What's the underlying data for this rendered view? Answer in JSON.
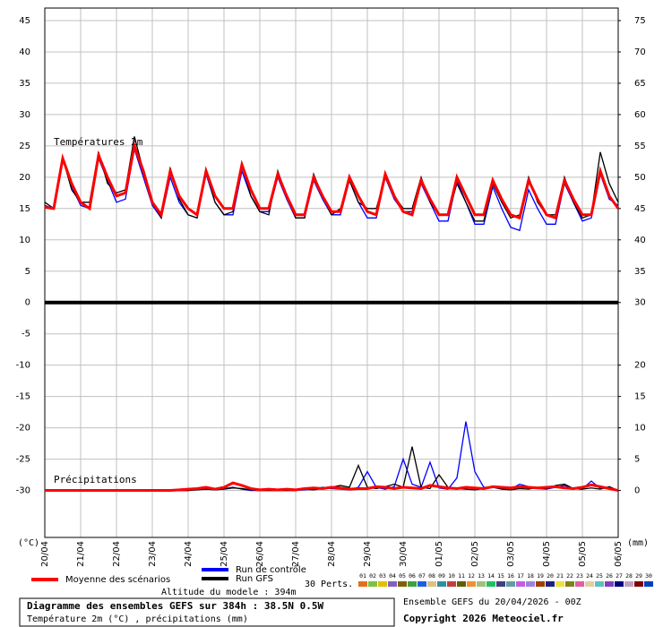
{
  "chart_data": {
    "type": "line",
    "title": "Diagramme des ensembles GEFS sur 384h : 38.5N 0.5W",
    "subtitle": "Température 2m (°C) , précipitations (mm)",
    "run_info": "Ensemble GEFS du 20/04/2026 - 00Z",
    "copyright": "Copyright 2026 Meteociel.fr",
    "altitude": "Altitude du modele : 394m",
    "temp_label": "Températures 2m",
    "precip_label": "Précipitations",
    "y_unit": "(°C)",
    "y2_unit": "(mm)",
    "perts_label": "30 Perts.",
    "xlim": [
      0,
      384
    ],
    "xticks": [
      {
        "value": 0,
        "label": "20/04"
      },
      {
        "value": 24,
        "label": "21/04"
      },
      {
        "value": 48,
        "label": "22/04"
      },
      {
        "value": 72,
        "label": "23/04"
      },
      {
        "value": 96,
        "label": "24/04"
      },
      {
        "value": 120,
        "label": "25/04"
      },
      {
        "value": 144,
        "label": "26/04"
      },
      {
        "value": 168,
        "label": "27/04"
      },
      {
        "value": 192,
        "label": "28/04"
      },
      {
        "value": 216,
        "label": "29/04"
      },
      {
        "value": 240,
        "label": "30/04"
      },
      {
        "value": 264,
        "label": "01/05"
      },
      {
        "value": 288,
        "label": "02/05"
      },
      {
        "value": 312,
        "label": "03/05"
      },
      {
        "value": 336,
        "label": "04/05"
      },
      {
        "value": 360,
        "label": "05/05"
      },
      {
        "value": 384,
        "label": "06/05"
      }
    ],
    "ylim": [
      -37.5,
      47
    ],
    "yticks": [
      45,
      40,
      35,
      30,
      25,
      20,
      15,
      10,
      5,
      0,
      -5,
      -10,
      -15,
      -20,
      -25,
      -30
    ],
    "y2lim": [
      -7.5,
      77
    ],
    "y2ticks": [
      75,
      70,
      65,
      60,
      55,
      50,
      45,
      40,
      35,
      30,
      20,
      15,
      10,
      5,
      0
    ],
    "grid": true,
    "x": [
      0,
      6,
      12,
      18,
      24,
      30,
      36,
      42,
      48,
      54,
      60,
      66,
      72,
      78,
      84,
      90,
      96,
      102,
      108,
      114,
      120,
      126,
      132,
      138,
      144,
      150,
      156,
      162,
      168,
      174,
      180,
      186,
      192,
      198,
      204,
      210,
      216,
      222,
      228,
      234,
      240,
      246,
      252,
      258,
      264,
      270,
      276,
      282,
      288,
      294,
      300,
      306,
      312,
      318,
      324,
      330,
      336,
      342,
      348,
      354,
      360,
      366,
      372,
      378,
      384
    ],
    "series": [
      {
        "name": "Moyenne des scénarios",
        "color": "#ff0000",
        "values": [
          15.2,
          15.0,
          23,
          19,
          16,
          15,
          23.5,
          20,
          17,
          17.5,
          25,
          21,
          16,
          14,
          21,
          17,
          15,
          14,
          21,
          17,
          15,
          15,
          22,
          18,
          15,
          15,
          20.5,
          17,
          14,
          14,
          20,
          17,
          14.5,
          14.5,
          20,
          17,
          14.5,
          14,
          20.5,
          17,
          14.5,
          14,
          19.5,
          16.5,
          14,
          14,
          20,
          17,
          14,
          14,
          19.5,
          16.5,
          14,
          13.5,
          19.5,
          16.5,
          14,
          13.5,
          19.5,
          16.5,
          14,
          14,
          21,
          17,
          15
        ],
        "precip": [
          0,
          0,
          0,
          0,
          0,
          0,
          0,
          0,
          0,
          0,
          0,
          0,
          0,
          0,
          0,
          0.1,
          0.2,
          0.3,
          0.5,
          0.2,
          0.5,
          1.2,
          0.8,
          0.3,
          0.1,
          0.2,
          0.1,
          0.2,
          0.1,
          0.3,
          0.4,
          0.3,
          0.5,
          0.4,
          0.2,
          0.3,
          0.3,
          0.6,
          0.5,
          0.3,
          0.5,
          0.4,
          0.3,
          0.8,
          0.6,
          0.4,
          0.3,
          0.5,
          0.4,
          0.3,
          0.6,
          0.5,
          0.4,
          0.6,
          0.5,
          0.4,
          0.5,
          0.6,
          0.4,
          0.3,
          0.5,
          0.9,
          0.6,
          0.3,
          0
        ]
      },
      {
        "name": "Run de contrôle",
        "color": "#0000ff",
        "values": [
          15.5,
          15,
          23,
          18.5,
          15.5,
          15,
          23,
          19.5,
          16,
          16.5,
          24.5,
          20,
          15.5,
          13.5,
          20,
          16,
          14,
          13.5,
          20.5,
          16,
          14,
          14,
          21,
          17,
          14.5,
          14.5,
          20,
          16.5,
          13.5,
          13.5,
          19.5,
          16.5,
          14,
          14,
          19.5,
          16,
          13.5,
          13.5,
          20,
          16.5,
          14.5,
          14.5,
          19,
          16,
          13,
          13,
          19.5,
          16,
          12.5,
          12.5,
          18.5,
          15,
          12,
          11.5,
          18,
          15,
          12.5,
          12.5,
          19,
          16,
          13,
          13.5,
          20.5,
          16.5,
          15.5
        ],
        "precip": [
          0,
          0,
          0,
          0,
          0,
          0,
          0,
          0,
          0,
          0,
          0,
          0,
          0,
          0,
          0,
          0,
          0,
          0.2,
          0.5,
          0.1,
          0.3,
          0.5,
          0.2,
          0,
          0,
          0,
          0,
          0,
          0,
          0.1,
          0.2,
          0.5,
          0.3,
          0.2,
          0.1,
          0.5,
          3,
          0.5,
          0.2,
          0.6,
          5,
          1,
          0.5,
          4.5,
          0.4,
          0.2,
          2,
          11,
          3,
          0.5,
          0.5,
          0.3,
          0.2,
          1,
          0.6,
          0.3,
          0.2,
          0.5,
          0.8,
          0.3,
          0.2,
          1.5,
          0.3,
          0.5,
          0
        ]
      },
      {
        "name": "Run GFS",
        "color": "#000000",
        "values": [
          16,
          15,
          23,
          18,
          16,
          16,
          24,
          19,
          17.5,
          18,
          26.5,
          21,
          16,
          13.5,
          21.5,
          16.5,
          14,
          13.5,
          21,
          16,
          14,
          14.5,
          22,
          17,
          14.5,
          14,
          21,
          17,
          13.5,
          13.5,
          20.5,
          17,
          14,
          15,
          19.5,
          16,
          15,
          15,
          20,
          17,
          15,
          15,
          20,
          16,
          14,
          14,
          19,
          16,
          13,
          13,
          19,
          16,
          13.5,
          14,
          20,
          16,
          14,
          14,
          20,
          16,
          13.5,
          14,
          24,
          19,
          16
        ],
        "precip": [
          0,
          0,
          0,
          0,
          0,
          0,
          0,
          0,
          0,
          0,
          0,
          0,
          0,
          0,
          0,
          0,
          0,
          0.1,
          0.2,
          0.1,
          0.2,
          0.4,
          0.3,
          0.1,
          0,
          0,
          0,
          0,
          0,
          0.2,
          0.1,
          0.3,
          0.5,
          0.8,
          0.5,
          4,
          0.5,
          0.3,
          0.6,
          1,
          0.5,
          7,
          0.5,
          0.3,
          2.5,
          0.5,
          0.3,
          0.2,
          0.1,
          0.3,
          0.5,
          0.2,
          0.1,
          0.3,
          0.2,
          0.5,
          0.3,
          0.8,
          1,
          0.3,
          0.2,
          0.4,
          0.2,
          0.6,
          0
        ]
      }
    ],
    "perturbations": [
      {
        "label": "01",
        "color": "#e07020"
      },
      {
        "label": "02",
        "color": "#80c040"
      },
      {
        "label": "03",
        "color": "#e0c000"
      },
      {
        "label": "04",
        "color": "#8060c0"
      },
      {
        "label": "05",
        "color": "#806000"
      },
      {
        "label": "06",
        "color": "#40a040"
      },
      {
        "label": "07",
        "color": "#2060e0"
      },
      {
        "label": "08",
        "color": "#e0c080"
      },
      {
        "label": "09",
        "color": "#3090a0"
      },
      {
        "label": "10",
        "color": "#c04040"
      },
      {
        "label": "11",
        "color": "#606000"
      },
      {
        "label": "12",
        "color": "#f09030"
      },
      {
        "label": "13",
        "color": "#a0c080"
      },
      {
        "label": "14",
        "color": "#20c060"
      },
      {
        "label": "15",
        "color": "#404080"
      },
      {
        "label": "16",
        "color": "#60a0a0"
      },
      {
        "label": "17",
        "color": "#c060e0"
      },
      {
        "label": "18",
        "color": "#a080e0"
      },
      {
        "label": "19",
        "color": "#a04000"
      },
      {
        "label": "20",
        "color": "#202080"
      },
      {
        "label": "21",
        "color": "#f0e040"
      },
      {
        "label": "22",
        "color": "#808020"
      },
      {
        "label": "23",
        "color": "#e060a0"
      },
      {
        "label": "24",
        "color": "#e0d0a0"
      },
      {
        "label": "25",
        "color": "#60c0c0"
      },
      {
        "label": "26",
        "color": "#8040c0"
      },
      {
        "label": "27",
        "color": "#000080"
      },
      {
        "label": "28",
        "color": "#c0a0c0"
      },
      {
        "label": "29",
        "color": "#800000"
      },
      {
        "label": "30",
        "color": "#0040c0"
      }
    ]
  }
}
